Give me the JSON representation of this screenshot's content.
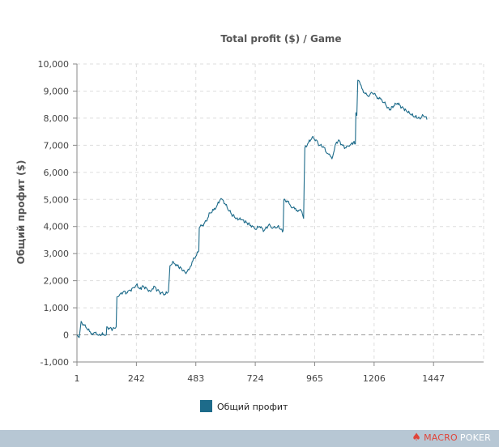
{
  "chart_data": {
    "type": "line",
    "title": "Total profit ($) / Game",
    "ylabel": "Общий профит ($)",
    "xlabel": "",
    "xlim": [
      1,
      1650
    ],
    "ylim": [
      -1000,
      10000
    ],
    "x_ticks": [
      1,
      242,
      483,
      724,
      965,
      1206,
      1447
    ],
    "x_tick_labels": [
      "1",
      "242",
      "483",
      "724",
      "965",
      "1206",
      "1447"
    ],
    "y_ticks": [
      -1000,
      0,
      1000,
      2000,
      3000,
      4000,
      5000,
      6000,
      7000,
      8000,
      9000,
      10000
    ],
    "y_tick_labels": [
      "-1,000",
      "0",
      "1,000",
      "2,000",
      "3,000",
      "4,000",
      "5,000",
      "6,000",
      "7,000",
      "8,000",
      "9,000",
      "10,000"
    ],
    "grid": true,
    "zero_line": true,
    "legend_position": "bottom",
    "series": [
      {
        "name": "Общий профит",
        "color": "#1d6b8a",
        "points": [
          [
            1,
            0
          ],
          [
            10,
            -100
          ],
          [
            18,
            500
          ],
          [
            28,
            380
          ],
          [
            40,
            250
          ],
          [
            52,
            120
          ],
          [
            62,
            50
          ],
          [
            75,
            80
          ],
          [
            90,
            0
          ],
          [
            110,
            20
          ],
          [
            120,
            0
          ],
          [
            122,
            300
          ],
          [
            132,
            250
          ],
          [
            146,
            220
          ],
          [
            160,
            300
          ],
          [
            163,
            1400
          ],
          [
            175,
            1500
          ],
          [
            190,
            1600
          ],
          [
            205,
            1550
          ],
          [
            218,
            1650
          ],
          [
            232,
            1750
          ],
          [
            242,
            1850
          ],
          [
            256,
            1700
          ],
          [
            270,
            1800
          ],
          [
            285,
            1700
          ],
          [
            300,
            1600
          ],
          [
            313,
            1800
          ],
          [
            327,
            1650
          ],
          [
            342,
            1550
          ],
          [
            360,
            1500
          ],
          [
            372,
            1600
          ],
          [
            378,
            2550
          ],
          [
            392,
            2700
          ],
          [
            408,
            2550
          ],
          [
            425,
            2450
          ],
          [
            440,
            2300
          ],
          [
            455,
            2400
          ],
          [
            468,
            2700
          ],
          [
            483,
            2900
          ],
          [
            495,
            3100
          ],
          [
            497,
            3950
          ],
          [
            510,
            4050
          ],
          [
            525,
            4200
          ],
          [
            540,
            4500
          ],
          [
            555,
            4600
          ],
          [
            568,
            4750
          ],
          [
            582,
            5000
          ],
          [
            595,
            4950
          ],
          [
            610,
            4700
          ],
          [
            628,
            4450
          ],
          [
            648,
            4300
          ],
          [
            668,
            4250
          ],
          [
            688,
            4150
          ],
          [
            705,
            4050
          ],
          [
            724,
            3900
          ],
          [
            742,
            4000
          ],
          [
            760,
            3850
          ],
          [
            778,
            4050
          ],
          [
            796,
            3950
          ],
          [
            815,
            4000
          ],
          [
            829,
            3900
          ],
          [
            837,
            3850
          ],
          [
            840,
            5000
          ],
          [
            852,
            4950
          ],
          [
            868,
            4750
          ],
          [
            884,
            4650
          ],
          [
            900,
            4600
          ],
          [
            913,
            4550
          ],
          [
            920,
            4300
          ],
          [
            925,
            6900
          ],
          [
            940,
            7100
          ],
          [
            955,
            7300
          ],
          [
            970,
            7200
          ],
          [
            985,
            7000
          ],
          [
            1000,
            6950
          ],
          [
            1015,
            6700
          ],
          [
            1028,
            6600
          ],
          [
            1035,
            6500
          ],
          [
            1048,
            7000
          ],
          [
            1062,
            7200
          ],
          [
            1077,
            7000
          ],
          [
            1092,
            6900
          ],
          [
            1108,
            7000
          ],
          [
            1122,
            7100
          ],
          [
            1130,
            7050
          ],
          [
            1132,
            8200
          ],
          [
            1136,
            8100
          ],
          [
            1140,
            9400
          ],
          [
            1150,
            9250
          ],
          [
            1160,
            9050
          ],
          [
            1170,
            8900
          ],
          [
            1182,
            8800
          ],
          [
            1195,
            8950
          ],
          [
            1206,
            8900
          ],
          [
            1222,
            8750
          ],
          [
            1238,
            8650
          ],
          [
            1253,
            8500
          ],
          [
            1268,
            8300
          ],
          [
            1285,
            8450
          ],
          [
            1300,
            8550
          ],
          [
            1318,
            8400
          ],
          [
            1335,
            8300
          ],
          [
            1352,
            8150
          ],
          [
            1370,
            8050
          ],
          [
            1390,
            8000
          ],
          [
            1405,
            8100
          ],
          [
            1414,
            8050
          ],
          [
            1420,
            7950
          ]
        ]
      }
    ]
  },
  "footer": {
    "brand_left": "MACRO",
    "brand_right": "POKER",
    "brand_icon": "spade-icon",
    "bar_color": "#b7c7d4"
  }
}
